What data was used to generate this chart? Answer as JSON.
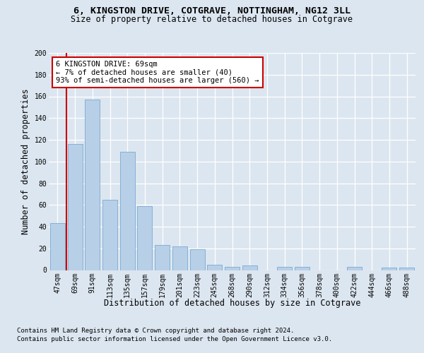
{
  "title_line1": "6, KINGSTON DRIVE, COTGRAVE, NOTTINGHAM, NG12 3LL",
  "title_line2": "Size of property relative to detached houses in Cotgrave",
  "xlabel": "Distribution of detached houses by size in Cotgrave",
  "ylabel": "Number of detached properties",
  "categories": [
    "47sqm",
    "69sqm",
    "91sqm",
    "113sqm",
    "135sqm",
    "157sqm",
    "179sqm",
    "201sqm",
    "223sqm",
    "245sqm",
    "268sqm",
    "290sqm",
    "312sqm",
    "334sqm",
    "356sqm",
    "378sqm",
    "400sqm",
    "422sqm",
    "444sqm",
    "466sqm",
    "488sqm"
  ],
  "values": [
    43,
    116,
    157,
    65,
    109,
    59,
    23,
    22,
    19,
    5,
    3,
    4,
    0,
    3,
    3,
    0,
    0,
    3,
    0,
    2,
    2
  ],
  "bar_color": "#b8cfe8",
  "bar_edge_color": "#7aaad0",
  "vline_color": "#cc0000",
  "annotation_text": "6 KINGSTON DRIVE: 69sqm\n← 7% of detached houses are smaller (40)\n93% of semi-detached houses are larger (560) →",
  "annotation_box_color": "#ffffff",
  "annotation_box_edge": "#cc0000",
  "ylim": [
    0,
    200
  ],
  "yticks": [
    0,
    20,
    40,
    60,
    80,
    100,
    120,
    140,
    160,
    180,
    200
  ],
  "footer_line1": "Contains HM Land Registry data © Crown copyright and database right 2024.",
  "footer_line2": "Contains public sector information licensed under the Open Government Licence v3.0.",
  "background_color": "#dce6f0",
  "plot_background": "#dce6f0",
  "grid_color": "#ffffff",
  "title_fontsize": 9.5,
  "subtitle_fontsize": 8.5,
  "axis_label_fontsize": 8.5,
  "tick_fontsize": 7,
  "footer_fontsize": 6.5,
  "annotation_fontsize": 7.5
}
